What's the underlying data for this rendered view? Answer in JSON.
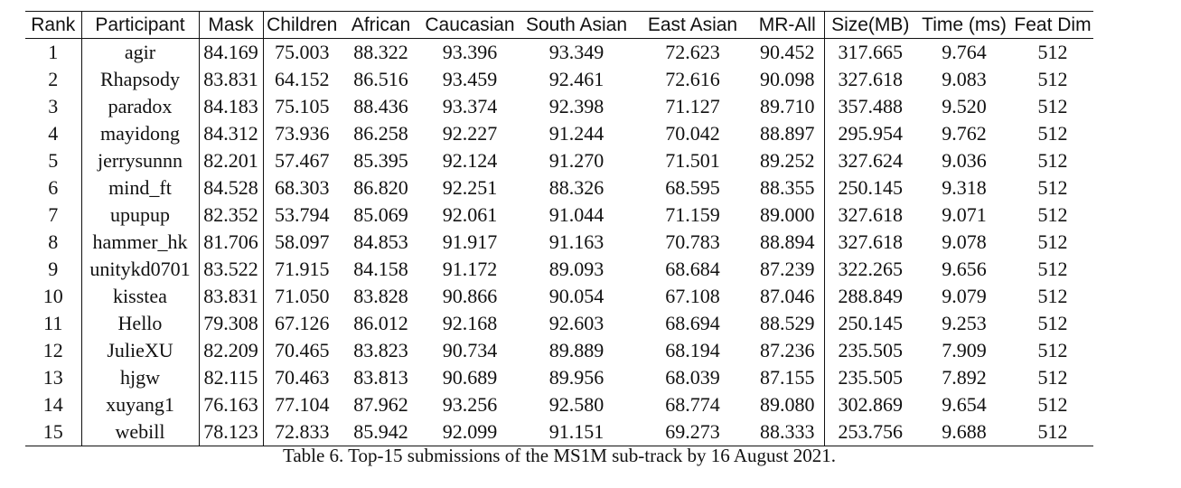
{
  "table": {
    "columns": [
      "Rank",
      "Participant",
      "Mask",
      "Children",
      "African",
      "Caucasian",
      "South Asian",
      "East Asian",
      "MR-All",
      "Size(MB)",
      "Time (ms)",
      "Feat Dim"
    ],
    "rows": [
      [
        "1",
        "agir",
        "84.169",
        "75.003",
        "88.322",
        "93.396",
        "93.349",
        "72.623",
        "90.452",
        "317.665",
        "9.764",
        "512"
      ],
      [
        "2",
        "Rhapsody",
        "83.831",
        "64.152",
        "86.516",
        "93.459",
        "92.461",
        "72.616",
        "90.098",
        "327.618",
        "9.083",
        "512"
      ],
      [
        "3",
        "paradox",
        "84.183",
        "75.105",
        "88.436",
        "93.374",
        "92.398",
        "71.127",
        "89.710",
        "357.488",
        "9.520",
        "512"
      ],
      [
        "4",
        "mayidong",
        "84.312",
        "73.936",
        "86.258",
        "92.227",
        "91.244",
        "70.042",
        "88.897",
        "295.954",
        "9.762",
        "512"
      ],
      [
        "5",
        "jerrysunnn",
        "82.201",
        "57.467",
        "85.395",
        "92.124",
        "91.270",
        "71.501",
        "89.252",
        "327.624",
        "9.036",
        "512"
      ],
      [
        "6",
        "mind_ft",
        "84.528",
        "68.303",
        "86.820",
        "92.251",
        "88.326",
        "68.595",
        "88.355",
        "250.145",
        "9.318",
        "512"
      ],
      [
        "7",
        "upupup",
        "82.352",
        "53.794",
        "85.069",
        "92.061",
        "91.044",
        "71.159",
        "89.000",
        "327.618",
        "9.071",
        "512"
      ],
      [
        "8",
        "hammer_hk",
        "81.706",
        "58.097",
        "84.853",
        "91.917",
        "91.163",
        "70.783",
        "88.894",
        "327.618",
        "9.078",
        "512"
      ],
      [
        "9",
        "unitykd0701",
        "83.522",
        "71.915",
        "84.158",
        "91.172",
        "89.093",
        "68.684",
        "87.239",
        "322.265",
        "9.656",
        "512"
      ],
      [
        "10",
        "kisstea",
        "83.831",
        "71.050",
        "83.828",
        "90.866",
        "90.054",
        "67.108",
        "87.046",
        "288.849",
        "9.079",
        "512"
      ],
      [
        "11",
        "Hello",
        "79.308",
        "67.126",
        "86.012",
        "92.168",
        "92.603",
        "68.694",
        "88.529",
        "250.145",
        "9.253",
        "512"
      ],
      [
        "12",
        "JulieXU",
        "82.209",
        "70.465",
        "83.823",
        "90.734",
        "89.889",
        "68.194",
        "87.236",
        "235.505",
        "7.909",
        "512"
      ],
      [
        "13",
        "hjgw",
        "82.115",
        "70.463",
        "83.813",
        "90.689",
        "89.956",
        "68.039",
        "87.155",
        "235.505",
        "7.892",
        "512"
      ],
      [
        "14",
        "xuyang1",
        "76.163",
        "77.104",
        "87.962",
        "93.256",
        "92.580",
        "68.774",
        "89.080",
        "302.869",
        "9.654",
        "512"
      ],
      [
        "15",
        "webill",
        "78.123",
        "72.833",
        "85.942",
        "92.099",
        "91.151",
        "69.273",
        "88.333",
        "253.756",
        "9.688",
        "512"
      ]
    ]
  },
  "caption": "Table 6. Top-15 submissions of the MS1M sub-track by 16 August 2021."
}
